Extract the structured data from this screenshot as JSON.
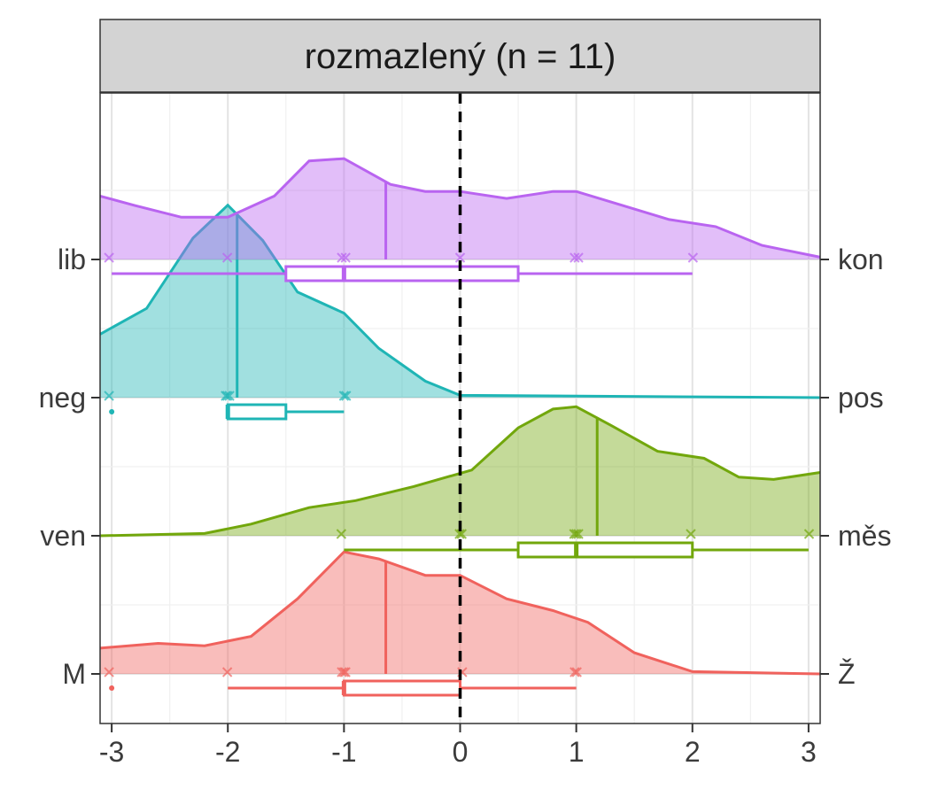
{
  "chart_data": {
    "type": "raincloud",
    "title": "rozmazlený (n = 11)",
    "xlim": [
      -3.1,
      3.1
    ],
    "x_ticks": [
      "-3",
      "-2",
      "-1",
      "0",
      "1",
      "2",
      "3"
    ],
    "reference_line_x": 0,
    "grid": true,
    "series": [
      {
        "left_label": "M",
        "right_label": "Ž",
        "color": "#F0625D",
        "observations": [
          -3,
          -2,
          -1,
          -1,
          -1,
          0,
          1,
          1
        ],
        "outliers": [
          -3
        ],
        "mean": -0.64,
        "boxplot": {
          "whisker_low": -2,
          "q1": -1,
          "median": -1,
          "q3": 0,
          "whisker_high": 1
        },
        "density": [
          [
            -3.1,
            0.11
          ],
          [
            -2.6,
            0.13
          ],
          [
            -2.2,
            0.12
          ],
          [
            -1.8,
            0.16
          ],
          [
            -1.4,
            0.32
          ],
          [
            -1.0,
            0.52
          ],
          [
            -0.7,
            0.49
          ],
          [
            -0.3,
            0.42
          ],
          [
            0.0,
            0.42
          ],
          [
            0.4,
            0.32
          ],
          [
            0.8,
            0.27
          ],
          [
            1.1,
            0.22
          ],
          [
            1.5,
            0.09
          ],
          [
            2.0,
            0.01
          ],
          [
            3.1,
            0.0
          ]
        ]
      },
      {
        "left_label": "ven",
        "right_label": "měs",
        "color": "#72A70C",
        "observations": [
          -1,
          0,
          0,
          1,
          1,
          1,
          2,
          3
        ],
        "outliers": [],
        "mean": 1.18,
        "boxplot": {
          "whisker_low": -1,
          "q1": 0.5,
          "median": 1,
          "q3": 2,
          "whisker_high": 3
        },
        "density": [
          [
            -3.1,
            0.0
          ],
          [
            -2.2,
            0.01
          ],
          [
            -1.8,
            0.05
          ],
          [
            -1.3,
            0.12
          ],
          [
            -0.9,
            0.15
          ],
          [
            -0.4,
            0.21
          ],
          [
            0.1,
            0.28
          ],
          [
            0.5,
            0.46
          ],
          [
            0.8,
            0.54
          ],
          [
            1.0,
            0.55
          ],
          [
            1.3,
            0.47
          ],
          [
            1.7,
            0.36
          ],
          [
            2.1,
            0.33
          ],
          [
            2.4,
            0.25
          ],
          [
            2.7,
            0.24
          ],
          [
            3.1,
            0.27
          ]
        ]
      },
      {
        "left_label": "neg",
        "right_label": "pos",
        "color": "#1FB5B5",
        "observations": [
          -3,
          -2,
          -2,
          -2,
          -1,
          -1
        ],
        "outliers": [
          -3
        ],
        "mean": -1.92,
        "boxplot": {
          "whisker_low": -2,
          "q1": -2,
          "median": -2,
          "q3": -1.5,
          "whisker_high": -1
        },
        "density": [
          [
            -3.1,
            0.27
          ],
          [
            -2.7,
            0.38
          ],
          [
            -2.3,
            0.68
          ],
          [
            -2.0,
            0.82
          ],
          [
            -1.7,
            0.67
          ],
          [
            -1.4,
            0.45
          ],
          [
            -1.0,
            0.36
          ],
          [
            -0.7,
            0.21
          ],
          [
            -0.3,
            0.07
          ],
          [
            0.0,
            0.01
          ],
          [
            3.1,
            0.0
          ]
        ]
      },
      {
        "left_label": "lib",
        "right_label": "kon",
        "color": "#B964F0",
        "observations": [
          -3,
          -2,
          -1,
          -1,
          0,
          1,
          1,
          2
        ],
        "outliers": [],
        "mean": -0.64,
        "boxplot": {
          "whisker_low": -3,
          "q1": -1.5,
          "median": -1,
          "q3": 0.5,
          "whisker_high": 2
        },
        "density": [
          [
            -3.1,
            0.27
          ],
          [
            -2.8,
            0.23
          ],
          [
            -2.4,
            0.18
          ],
          [
            -2.0,
            0.18
          ],
          [
            -1.6,
            0.27
          ],
          [
            -1.3,
            0.42
          ],
          [
            -1.0,
            0.43
          ],
          [
            -0.6,
            0.32
          ],
          [
            -0.3,
            0.29
          ],
          [
            0.0,
            0.29
          ],
          [
            0.4,
            0.26
          ],
          [
            0.8,
            0.29
          ],
          [
            1.0,
            0.29
          ],
          [
            1.4,
            0.23
          ],
          [
            1.8,
            0.17
          ],
          [
            2.2,
            0.14
          ],
          [
            2.6,
            0.06
          ],
          [
            3.1,
            0.01
          ]
        ]
      }
    ]
  }
}
